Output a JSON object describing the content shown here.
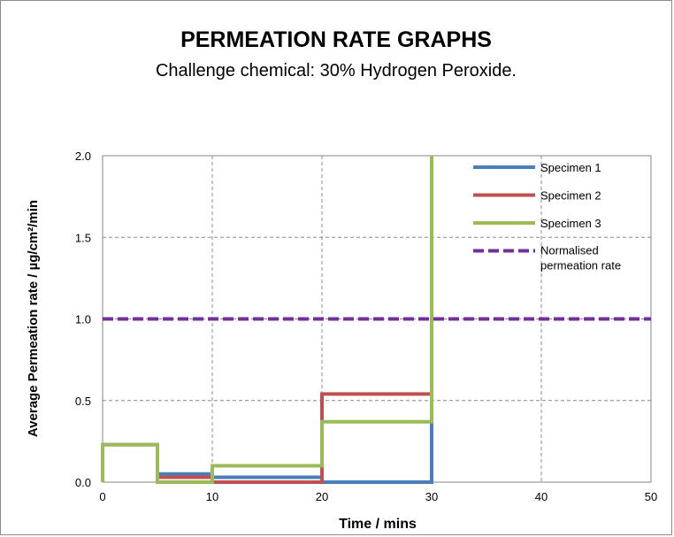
{
  "chart_data": {
    "type": "line",
    "title": "PERMEATION RATE GRAPHS",
    "subtitle": "Challenge chemical: 30% Hydrogen Peroxide.",
    "xlabel": "Time / mins",
    "ylabel": "Average  Permeation rate / µg/cm²/min",
    "xlim": [
      0,
      50
    ],
    "ylim": [
      0,
      2
    ],
    "x_ticks": [
      "0",
      "10",
      "20",
      "30",
      "40",
      "50"
    ],
    "y_ticks": [
      "0.0",
      "0.5",
      "1.0",
      "1.5",
      "2.0"
    ],
    "grid": true,
    "legend_position": "top-right",
    "series": [
      {
        "name": "Specimen 1",
        "color": "#4a7ebb",
        "style": "step",
        "x": [
          0,
          5,
          5,
          10,
          10,
          20,
          20,
          30,
          30
        ],
        "y": [
          0.23,
          0.23,
          0.05,
          0.05,
          0.03,
          0.03,
          0.0,
          0.0,
          0.5
        ]
      },
      {
        "name": "Specimen 2",
        "color": "#c0504d",
        "style": "step",
        "x": [
          5,
          10,
          10,
          20,
          20,
          30
        ],
        "y": [
          0.03,
          0.03,
          0.0,
          0.0,
          0.54,
          0.54
        ]
      },
      {
        "name": "Specimen 3",
        "color": "#9bbb59",
        "style": "step",
        "x": [
          0,
          0,
          5,
          5,
          10,
          10,
          20,
          20,
          30,
          30
        ],
        "y": [
          0.0,
          0.23,
          0.23,
          0.0,
          0.0,
          0.1,
          0.1,
          0.37,
          0.37,
          2.0
        ]
      },
      {
        "name": "Normalised permeation rate",
        "legend_lines": [
          "Normalised",
          "permeation rate"
        ],
        "color": "#7030a0",
        "style": "dashed",
        "x": [
          0,
          50
        ],
        "y": [
          1.0,
          1.0
        ]
      }
    ]
  }
}
